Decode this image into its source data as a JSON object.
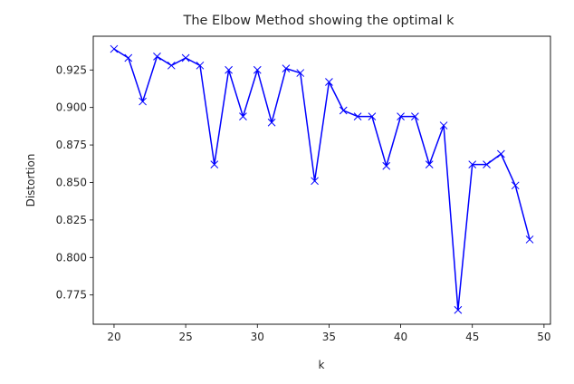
{
  "chart_data": {
    "type": "line",
    "title": "The Elbow Method showing the optimal k",
    "xlabel": "k",
    "ylabel": "Distortion",
    "xlim": [
      18.55,
      50.45
    ],
    "ylim": [
      0.7555,
      0.9475
    ],
    "xticks": [
      20,
      25,
      30,
      35,
      40,
      45,
      50
    ],
    "yticks": [
      0.775,
      0.8,
      0.825,
      0.85,
      0.875,
      0.9,
      0.925
    ],
    "xtick_labels": [
      "20",
      "25",
      "30",
      "35",
      "40",
      "45",
      "50"
    ],
    "ytick_labels": [
      "0.775",
      "0.800",
      "0.825",
      "0.850",
      "0.875",
      "0.900",
      "0.925"
    ],
    "grid": false,
    "series": [
      {
        "color": "#0000ff",
        "marker": "x",
        "x": [
          20,
          21,
          22,
          23,
          24,
          25,
          26,
          27,
          28,
          29,
          30,
          31,
          32,
          33,
          34,
          35,
          36,
          37,
          38,
          39,
          40,
          41,
          42,
          43,
          44,
          45,
          46,
          47,
          48,
          49
        ],
        "y": [
          0.939,
          0.933,
          0.904,
          0.934,
          0.928,
          0.933,
          0.928,
          0.862,
          0.925,
          0.894,
          0.925,
          0.89,
          0.926,
          0.923,
          0.851,
          0.917,
          0.898,
          0.894,
          0.894,
          0.861,
          0.894,
          0.894,
          0.862,
          0.888,
          0.765,
          0.862,
          0.862,
          0.869,
          0.848,
          0.812
        ]
      }
    ]
  }
}
